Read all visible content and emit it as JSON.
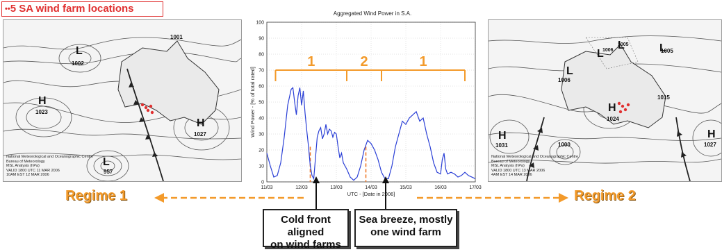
{
  "legend_title": "5 SA wind farm locations",
  "left_map": {
    "high_1": {
      "letter": "H",
      "value": "1023"
    },
    "low_1": {
      "letter": "L",
      "value": "1002"
    },
    "high_2": {
      "letter": "H",
      "value": "1027"
    },
    "low_2": {
      "letter": "L",
      "value": "957"
    },
    "isobar_label": "1001",
    "credit": [
      "National Meteorological and Oceanographic Centre",
      "Bureau of Meteorology",
      "MSL Analysis (hPa)",
      "VALID 1800 UTC 11 MAR 2006",
      "10AM EST 12 MAR 2006"
    ]
  },
  "right_map": {
    "low_1": {
      "letter": "L",
      "value": "1006"
    },
    "low_2": {
      "letter": "L",
      "value": "1005"
    },
    "low_3": {
      "letter": "L",
      "value": "1005"
    },
    "high_1": {
      "letter": "H",
      "value": "1024"
    },
    "high_2": {
      "letter": "H",
      "value": "1031"
    },
    "high_3": {
      "letter": "H",
      "value": "1027"
    },
    "isobar_1": "1015",
    "isobar_2": "1000",
    "credit": [
      "National Meteorological and Oceanographic Centre",
      "Bureau of Meteorology",
      "MSL Analysis (hPa)",
      "VALID 1800 UTC 13 MAR 2006",
      "4AM EST 14 MAR 2006"
    ]
  },
  "regime_labels": {
    "left": "Regime 1",
    "right": "Regime 2"
  },
  "callouts": {
    "cold_front": [
      "Cold front aligned",
      "on wind farms"
    ],
    "sea_breeze": [
      "Sea breeze, mostly",
      "one wind farm"
    ]
  },
  "colors": {
    "series": "#2a3fd6",
    "annotation": "#f39a2a",
    "marker": "#f07a2a",
    "legend": "#e03030"
  },
  "chart_data": {
    "type": "line",
    "title": "Aggregated Wind Power in S.A.",
    "xlabel": "UTC - [Date in 2006]",
    "ylabel": "Wind Power - [% of total rated]",
    "xlim": [
      0,
      6
    ],
    "ylim": [
      0,
      100
    ],
    "xticks": [
      0,
      1,
      2,
      3,
      4,
      5,
      6
    ],
    "xtick_labels": [
      "11/03",
      "12/03",
      "13/03",
      "14/03",
      "15/03",
      "16/03",
      "17/03"
    ],
    "yticks": [
      0,
      10,
      20,
      30,
      40,
      50,
      60,
      70,
      80,
      90,
      100
    ],
    "ytick_labels": [
      "0",
      "10",
      "20",
      "30",
      "40",
      "50",
      "60",
      "70",
      "80",
      "90",
      "100"
    ],
    "grid": "dotted",
    "series": [
      {
        "color": "#2a3fd6",
        "x": [
          0,
          0.1,
          0.2,
          0.3,
          0.4,
          0.5,
          0.6,
          0.7,
          0.75,
          0.8,
          0.85,
          0.9,
          0.95,
          1.0,
          1.05,
          1.1,
          1.15,
          1.2,
          1.25,
          1.3,
          1.35,
          1.4,
          1.45,
          1.5,
          1.55,
          1.6,
          1.65,
          1.7,
          1.75,
          1.8,
          1.85,
          1.9,
          1.95,
          2.0,
          2.05,
          2.1,
          2.15,
          2.2,
          2.3,
          2.4,
          2.5,
          2.6,
          2.7,
          2.8,
          2.9,
          3.0,
          3.1,
          3.2,
          3.3,
          3.4,
          3.5,
          3.6,
          3.7,
          3.8,
          3.9,
          4.0,
          4.1,
          4.2,
          4.3,
          4.4,
          4.5,
          4.6,
          4.7,
          4.8,
          4.9,
          5.0,
          5.05,
          5.1,
          5.15,
          5.2,
          5.3,
          5.4,
          5.5,
          5.6,
          5.7,
          5.8,
          5.9,
          6.0
        ],
        "y": [
          18,
          10,
          3,
          4,
          12,
          28,
          48,
          58,
          59,
          50,
          42,
          54,
          59,
          48,
          57,
          43,
          32,
          22,
          10,
          4,
          2,
          15,
          28,
          32,
          34,
          27,
          30,
          36,
          30,
          33,
          32,
          28,
          31,
          30,
          22,
          15,
          18,
          12,
          8,
          3,
          1,
          3,
          10,
          20,
          26,
          24,
          20,
          14,
          6,
          2,
          2,
          10,
          22,
          30,
          38,
          36,
          40,
          42,
          44,
          38,
          40,
          30,
          22,
          12,
          6,
          5,
          14,
          18,
          8,
          5,
          6,
          5,
          3,
          4,
          6,
          4,
          3,
          2
        ]
      }
    ],
    "annotations": {
      "bracket_labels": [
        "1",
        "2",
        "1"
      ],
      "bracket_bounds": [
        0.25,
        2.3,
        3.3,
        5.7
      ],
      "bracket_y": 70,
      "marker_lines_x": [
        1.25,
        2.85
      ]
    }
  }
}
